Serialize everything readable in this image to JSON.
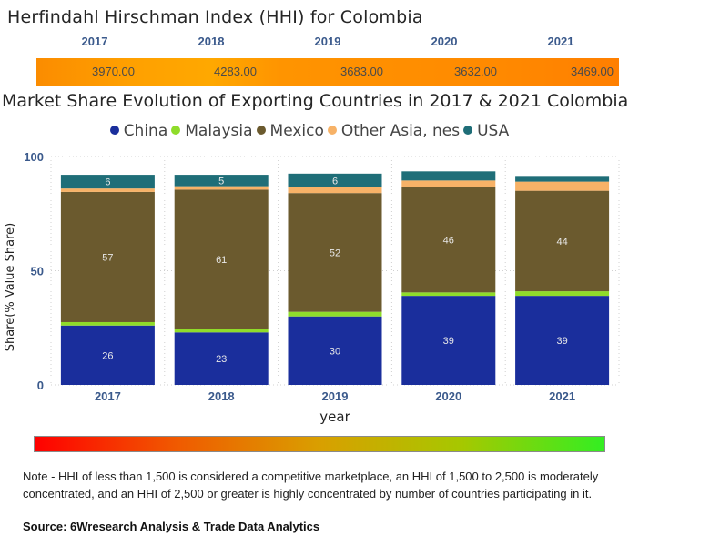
{
  "hhi": {
    "title": "Herfindahl Hirschman Index (HHI) for Colombia",
    "years": [
      "2017",
      "2018",
      "2019",
      "2020",
      "2021"
    ],
    "values": [
      "3970.00",
      "4283.00",
      "3683.00",
      "3632.00",
      "3469.00"
    ],
    "bar_color": "#FF9800"
  },
  "chart_data": {
    "type": "bar",
    "stacked": true,
    "title": "Market Share Evolution of Exporting Countries in 2017 & 2021 Colombia",
    "xlabel": "year",
    "ylabel": "Share(% Value Share)",
    "categories": [
      "2017",
      "2018",
      "2019",
      "2020",
      "2021"
    ],
    "ylim": [
      0,
      100
    ],
    "yticks": [
      0,
      50,
      100
    ],
    "grid": true,
    "legend_position": "top-center",
    "series": [
      {
        "name": "China",
        "color": "#1a2e9c",
        "values": [
          26,
          23,
          30,
          39,
          39
        ],
        "labels": [
          "26",
          "23",
          "30",
          "39",
          "39"
        ]
      },
      {
        "name": "Malaysia",
        "color": "#8fdc2a",
        "values": [
          1.5,
          1.5,
          2,
          1.5,
          2
        ],
        "labels": [
          "",
          "",
          "",
          "",
          ""
        ]
      },
      {
        "name": "Mexico",
        "color": "#6b5a2e",
        "values": [
          57,
          61,
          52,
          46,
          44
        ],
        "labels": [
          "57",
          "61",
          "52",
          "46",
          "44"
        ]
      },
      {
        "name": "Other Asia, nes",
        "color": "#f7b267",
        "values": [
          1.5,
          1.5,
          2.5,
          3,
          4
        ],
        "labels": [
          "",
          "",
          "",
          "",
          ""
        ]
      },
      {
        "name": "USA",
        "color": "#1f6e78",
        "values": [
          6,
          5,
          6,
          4,
          2.5
        ],
        "labels": [
          "6",
          "5",
          "6",
          "",
          ""
        ]
      }
    ]
  },
  "gradient_legend": {
    "colors": [
      "#ff0000",
      "#f05a00",
      "#d99f00",
      "#a6c800",
      "#33ee22"
    ]
  },
  "footer": {
    "note": "Note - HHI of less than 1,500 is considered a competitive marketplace, an HHI of 1,500 to 2,500 is moderately concentrated, and an HHI of 2,500 or greater is highly concentrated by number of countries participating in it.",
    "source": "Source: 6Wresearch Analysis & Trade Data Analytics"
  }
}
